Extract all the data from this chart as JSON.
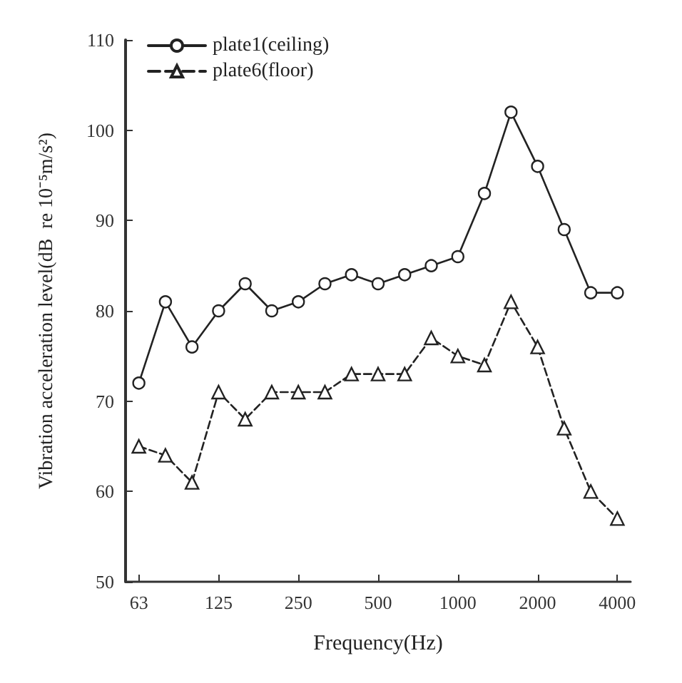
{
  "chart_data": {
    "type": "line",
    "xlabel": "Frequency(Hz)",
    "ylabel": "Vibration acceleration level(dB  re 10⁻⁵m/s²)",
    "categories": [
      "63",
      null,
      null,
      "125",
      null,
      null,
      "250",
      null,
      null,
      "500",
      null,
      null,
      "1000",
      null,
      null,
      "2000",
      null,
      null,
      "4000"
    ],
    "series": [
      {
        "name": "plate1(ceiling)",
        "color": "#222222",
        "marker": "circle",
        "line_style": "solid",
        "values": [
          72,
          81,
          76,
          80,
          83,
          80,
          81,
          83,
          84,
          83,
          84,
          85,
          86,
          93,
          102,
          96,
          89,
          82,
          82
        ]
      },
      {
        "name": "plate6(floor)",
        "color": "#222222",
        "marker": "triangle",
        "line_style": "dashed",
        "values": [
          65,
          64,
          61,
          71,
          68,
          71,
          71,
          71,
          73,
          73,
          73,
          77,
          75,
          74,
          81,
          76,
          67,
          60,
          57
        ]
      }
    ],
    "ylim": [
      50,
      110
    ],
    "yticks": [
      50,
      60,
      70,
      80,
      90,
      100,
      110
    ],
    "grid": false,
    "legend": "top left"
  }
}
